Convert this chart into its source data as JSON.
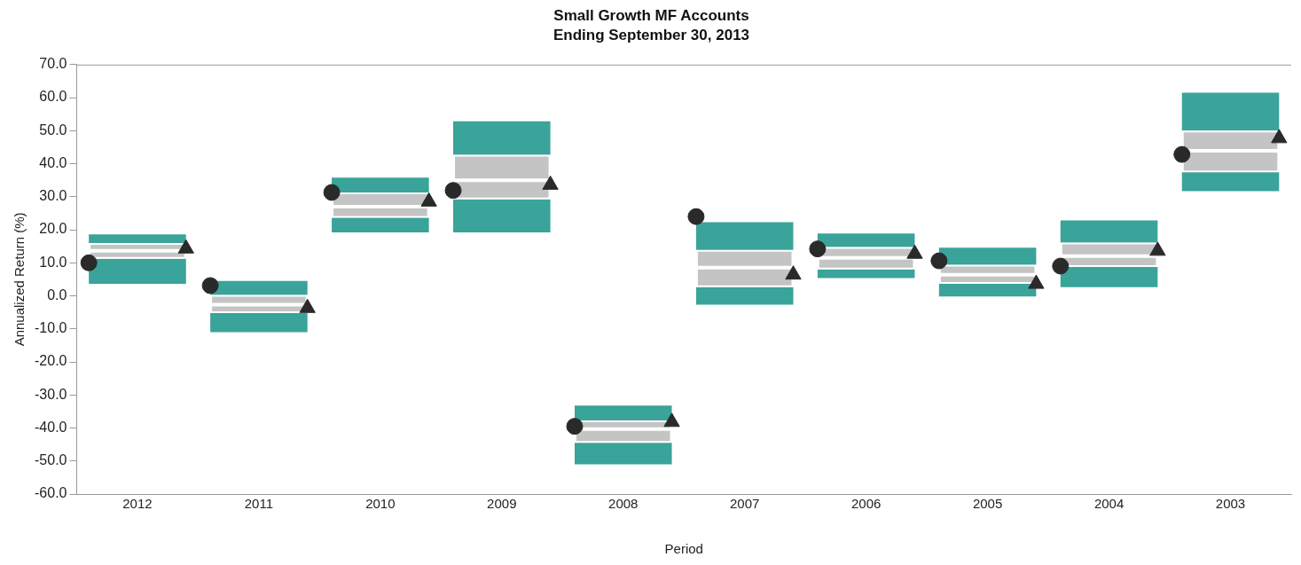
{
  "chart_data": {
    "type": "bar",
    "title": "Small Growth MF Accounts",
    "subtitle": "Ending September 30, 2013",
    "xlabel": "Period",
    "ylabel": "Annualized Return (%)",
    "categories": [
      "2012",
      "2011",
      "2010",
      "2009",
      "2008",
      "2007",
      "2006",
      "2005",
      "2004",
      "2003"
    ],
    "series": [
      {
        "color": "#3aa39a",
        "base": [
          3.6,
          -11.0,
          19.2,
          19.2,
          -51.0,
          -2.7,
          5.4,
          -0.2,
          2.6,
          31.7
        ],
        "values": [
          7.6,
          5.8,
          4.4,
          10.0,
          6.5,
          5.3,
          2.6,
          3.8,
          6.1,
          5.7
        ]
      },
      {
        "color": "#c4c4c4",
        "base": [
          11.2,
          -5.2,
          23.6,
          29.2,
          -44.5,
          2.6,
          8.0,
          3.6,
          8.7,
          37.4
        ],
        "values": [
          2.4,
          2.5,
          3.4,
          5.8,
          4.2,
          5.9,
          3.5,
          2.8,
          3.3,
          6.5
        ]
      },
      {
        "color": "#c4c4c4",
        "base": [
          13.6,
          -2.7,
          27.0,
          35.0,
          -40.3,
          8.5,
          11.5,
          6.4,
          12.0,
          43.9
        ],
        "values": [
          2.4,
          3.0,
          4.3,
          7.7,
          2.6,
          5.4,
          3.3,
          3.0,
          4.1,
          6.1
        ]
      },
      {
        "color": "#3aa39a",
        "base": [
          16.0,
          0.3,
          31.3,
          42.7,
          -37.7,
          13.9,
          14.8,
          9.4,
          16.1,
          50.0
        ],
        "values": [
          2.6,
          4.2,
          4.5,
          10.1,
          4.5,
          8.4,
          4.1,
          5.2,
          6.7,
          11.5
        ]
      },
      {
        "type": "scatter",
        "marker": "circle",
        "color": "#2a2a2a",
        "values": [
          10.0,
          3.1,
          31.3,
          31.9,
          -39.5,
          24.0,
          14.2,
          10.6,
          9.0,
          42.8
        ]
      },
      {
        "type": "scatter",
        "marker": "triangle",
        "color": "#2a2a2a",
        "values": [
          14.3,
          -3.7,
          28.5,
          33.6,
          -38.2,
          6.4,
          12.7,
          3.6,
          13.6,
          47.7
        ]
      }
    ],
    "ylim": [
      -60,
      70
    ],
    "yticks": [
      {
        "value": -60,
        "label": "-60.0"
      },
      {
        "value": -50,
        "label": "-50.0"
      },
      {
        "value": -40,
        "label": "-40.0"
      },
      {
        "value": -30,
        "label": "-30.0"
      },
      {
        "value": -20,
        "label": "-20.0"
      },
      {
        "value": -10,
        "label": "-10.0"
      },
      {
        "value": 0,
        "label": "0.0"
      },
      {
        "value": 10,
        "label": "10.0"
      },
      {
        "value": 20,
        "label": "20.0"
      },
      {
        "value": 30,
        "label": "30.0"
      },
      {
        "value": 40,
        "label": "40.0"
      },
      {
        "value": 50,
        "label": "50.0"
      },
      {
        "value": 60,
        "label": "60.0"
      },
      {
        "value": 70,
        "label": "70.0"
      }
    ],
    "grid": false,
    "legend": false
  }
}
